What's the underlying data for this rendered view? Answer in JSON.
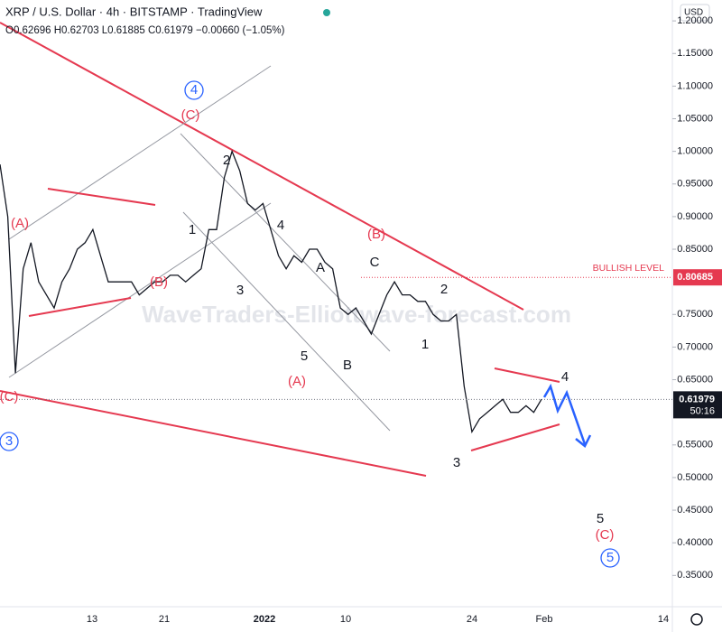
{
  "header": {
    "title": "XRP / U.S. Dollar · 4h · BITSTAMP · TradingView",
    "ohlc": "O0.62696 H0.62703 L0.61885 C0.61979 −0.00660 (−1.05%)",
    "currency": "USD"
  },
  "watermark": "WaveTraders-Elliottwave-forecast.com",
  "chart_data": {
    "type": "line",
    "series": [
      {
        "name": "XRP / U.S. Dollar",
        "color": "#131722",
        "values": [
          0.98,
          0.9,
          0.66,
          0.82,
          0.86,
          0.8,
          0.78,
          0.76,
          0.8,
          0.82,
          0.85,
          0.86,
          0.88,
          0.84,
          0.8,
          0.8,
          0.8,
          0.8,
          0.78,
          0.79,
          0.8,
          0.8,
          0.81,
          0.81,
          0.8,
          0.81,
          0.82,
          0.88,
          0.88,
          0.96,
          1.0,
          0.97,
          0.92,
          0.91,
          0.92,
          0.88,
          0.84,
          0.82,
          0.84,
          0.83,
          0.85,
          0.85,
          0.83,
          0.82,
          0.76,
          0.75,
          0.76,
          0.74,
          0.72,
          0.75,
          0.78,
          0.8,
          0.78,
          0.78,
          0.77,
          0.77,
          0.75,
          0.74,
          0.74,
          0.75,
          0.64,
          0.57,
          0.59,
          0.6,
          0.61,
          0.62,
          0.6,
          0.6,
          0.61,
          0.6,
          0.62
        ]
      }
    ],
    "ylim": [
      0.302,
      1.232
    ],
    "yticks": [
      {
        "value": 1.2,
        "label": "1.20000"
      },
      {
        "value": 1.15,
        "label": "1.15000"
      },
      {
        "value": 1.1,
        "label": "1.10000"
      },
      {
        "value": 1.05,
        "label": "1.05000"
      },
      {
        "value": 1.0,
        "label": "1.00000"
      },
      {
        "value": 0.95,
        "label": "0.95000"
      },
      {
        "value": 0.9,
        "label": "0.90000"
      },
      {
        "value": 0.85,
        "label": "0.85000"
      },
      {
        "value": 0.75,
        "label": "0.75000"
      },
      {
        "value": 0.7,
        "label": "0.70000"
      },
      {
        "value": 0.65,
        "label": "0.65000"
      },
      {
        "value": 0.55,
        "label": "0.55000"
      },
      {
        "value": 0.5,
        "label": "0.50000"
      },
      {
        "value": 0.45,
        "label": "0.45000"
      },
      {
        "value": 0.4,
        "label": "0.40000"
      },
      {
        "value": 0.35,
        "label": "0.35000"
      }
    ],
    "xtick_labels": [
      "13",
      "21",
      "2022",
      "10",
      "24",
      "Feb",
      "14"
    ],
    "bullish_level": {
      "label": "BULLISH LEVEL",
      "value": 0.80685
    },
    "last_price": {
      "value": 0.61979,
      "countdown": "50:16"
    },
    "annotations": [
      "(A)",
      "(B)",
      "(C)",
      "4",
      "2",
      "1",
      "3",
      "4",
      "A",
      "5",
      "B",
      "(A)",
      "(B)",
      "C",
      "2",
      "1",
      "3",
      "4",
      "(C)",
      "3",
      "5",
      "(C)",
      "5"
    ]
  }
}
